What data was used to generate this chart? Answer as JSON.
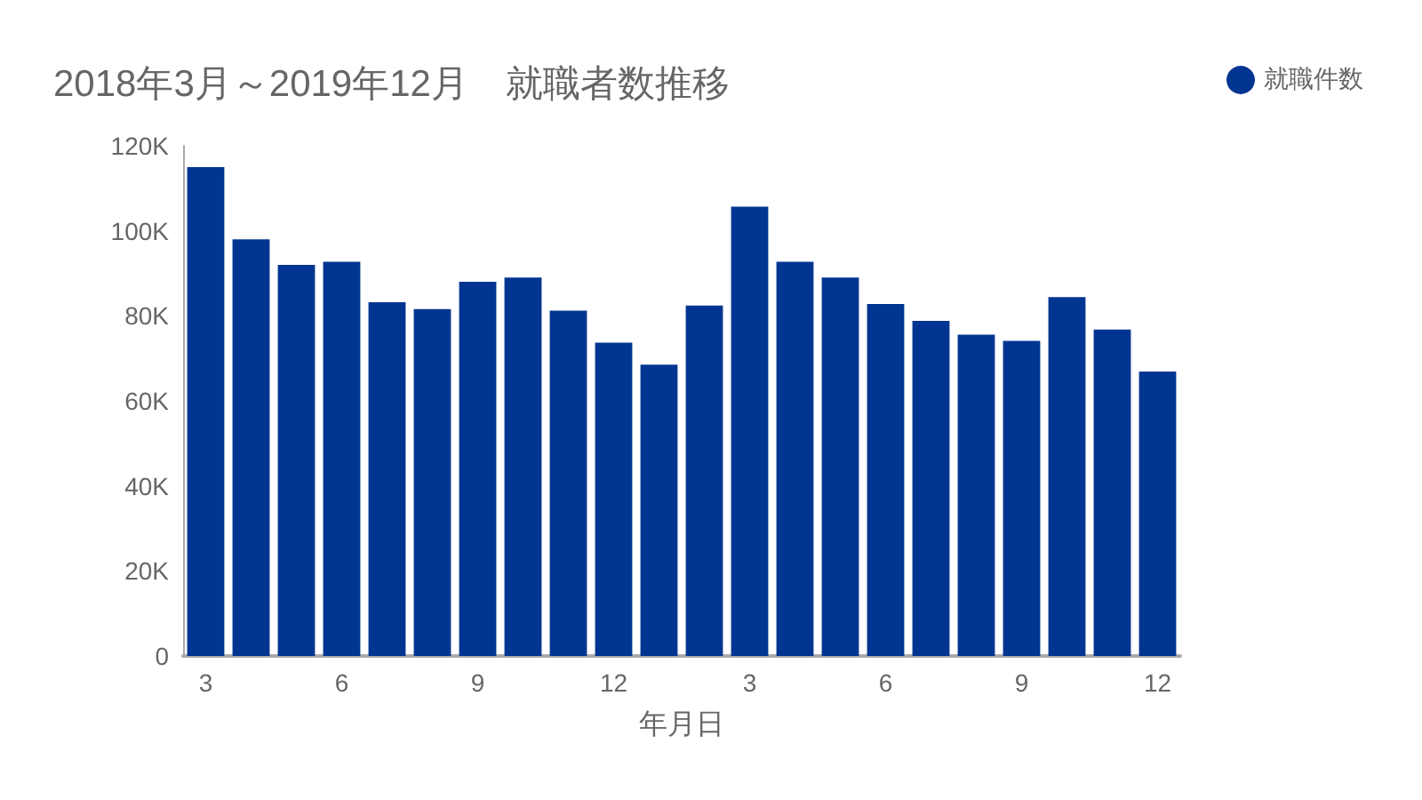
{
  "chart_data": {
    "type": "bar",
    "title": "2018年3月～2019年12月　就職者数推移",
    "xlabel": "年月日",
    "categories": [
      "3",
      null,
      null,
      "6",
      null,
      null,
      "9",
      null,
      null,
      "12",
      null,
      null,
      "3",
      null,
      null,
      "6",
      null,
      null,
      "9",
      null,
      null,
      "12"
    ],
    "series": [
      {
        "name": "就職件数",
        "color": "#003591",
        "values": [
          115000,
          98000,
          92000,
          92700,
          83200,
          81600,
          88000,
          89000,
          81200,
          73700,
          68500,
          82400,
          105700,
          92700,
          89000,
          82800,
          78800,
          75600,
          74100,
          84400,
          76800,
          66900
        ]
      }
    ],
    "ylim": [
      0,
      120000
    ],
    "yticks": [
      0,
      {
        "value": 20000,
        "label": "20K"
      },
      {
        "value": 40000,
        "label": "40K"
      },
      {
        "value": 60000,
        "label": "60K"
      },
      {
        "value": 80000,
        "label": "80K"
      },
      {
        "value": 100000,
        "label": "100K"
      },
      {
        "value": 120000,
        "label": "120K"
      }
    ],
    "grid": false,
    "legend": "top right"
  }
}
